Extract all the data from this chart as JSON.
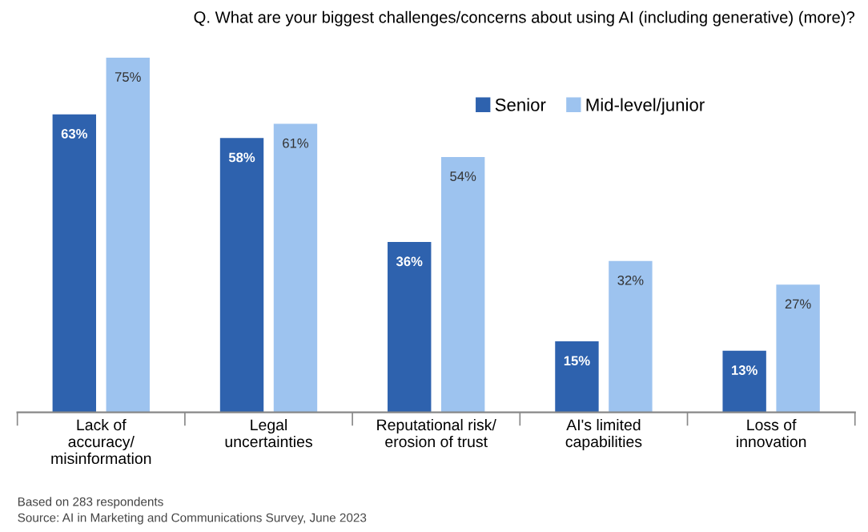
{
  "chart_data": {
    "type": "bar",
    "title": "Q. What are your biggest challenges/concerns about using AI (including generative) (more)?",
    "categories": [
      "Lack of\naccuracy/\nmisinformation",
      "Legal\nuncertainties",
      "Reputational risk/\nerosion of trust",
      "AI's limited\ncapabilities",
      "Loss of\ninnovation"
    ],
    "series": [
      {
        "name": "Senior",
        "color": "#2e62ae",
        "values": [
          63,
          58,
          36,
          15,
          13
        ],
        "value_labels": [
          "63%",
          "58%",
          "36%",
          "15%",
          "13%"
        ]
      },
      {
        "name": "Mid-level/junior",
        "color": "#9dc3ef",
        "values": [
          75,
          61,
          54,
          32,
          27
        ],
        "value_labels": [
          "75%",
          "61%",
          "54%",
          "32%",
          "27%"
        ]
      }
    ],
    "legend": "top right",
    "annotations": [
      "Based on 283 respondents",
      "Source: AI in Marketing and Communications Survey, June 2023"
    ]
  }
}
